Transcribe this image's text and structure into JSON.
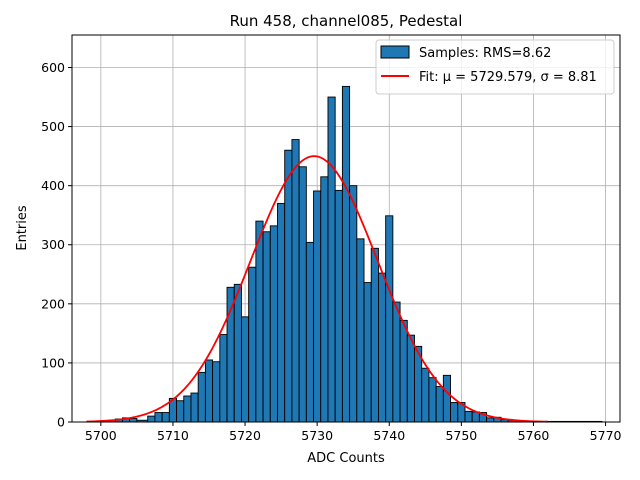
{
  "chart_data": {
    "type": "bar",
    "subtype": "histogram",
    "title": "Run 458, channel085, Pedestal",
    "xlabel": "ADC Counts",
    "ylabel": "Entries",
    "xlim": [
      5696,
      5772
    ],
    "ylim": [
      0,
      655
    ],
    "xticks": [
      5700,
      5710,
      5720,
      5730,
      5740,
      5750,
      5760,
      5770
    ],
    "yticks": [
      0,
      100,
      200,
      300,
      400,
      500,
      600
    ],
    "grid": true,
    "legend_position": "top-right",
    "bar_color": "#1f77b4",
    "fit_color": "#ff0000",
    "series": [
      {
        "name": "Samples: RMS=8.62",
        "bins": [
          [
            5700.0,
            5701.0,
            2
          ],
          [
            5701.0,
            5702.0,
            3
          ],
          [
            5702.0,
            5703.0,
            5
          ],
          [
            5703.0,
            5704.0,
            7
          ],
          [
            5704.0,
            5705.0,
            6
          ],
          [
            5705.0,
            5706.5,
            3
          ],
          [
            5706.5,
            5707.5,
            10
          ],
          [
            5707.5,
            5708.5,
            16
          ],
          [
            5708.5,
            5709.5,
            16
          ],
          [
            5709.5,
            5710.5,
            40
          ],
          [
            5710.5,
            5711.5,
            36
          ],
          [
            5711.5,
            5712.5,
            44
          ],
          [
            5712.5,
            5713.5,
            49
          ],
          [
            5713.5,
            5714.5,
            84
          ],
          [
            5714.5,
            5715.5,
            105
          ],
          [
            5715.5,
            5716.5,
            102
          ],
          [
            5716.5,
            5717.5,
            148
          ],
          [
            5717.5,
            5718.5,
            228
          ],
          [
            5718.5,
            5719.5,
            233
          ],
          [
            5719.5,
            5720.5,
            178
          ],
          [
            5720.5,
            5721.5,
            262
          ],
          [
            5721.5,
            5722.5,
            340
          ],
          [
            5722.5,
            5723.5,
            322
          ],
          [
            5723.5,
            5724.5,
            332
          ],
          [
            5724.5,
            5725.5,
            370
          ],
          [
            5725.5,
            5726.5,
            460
          ],
          [
            5726.5,
            5727.5,
            478
          ],
          [
            5727.5,
            5728.5,
            432
          ],
          [
            5728.5,
            5729.5,
            304
          ],
          [
            5729.5,
            5730.5,
            391
          ],
          [
            5730.5,
            5731.5,
            415
          ],
          [
            5731.5,
            5732.5,
            550
          ],
          [
            5732.5,
            5733.5,
            392
          ],
          [
            5733.5,
            5734.5,
            568
          ],
          [
            5734.5,
            5735.5,
            400
          ],
          [
            5735.5,
            5736.5,
            310
          ],
          [
            5736.5,
            5737.5,
            236
          ],
          [
            5737.5,
            5738.5,
            294
          ],
          [
            5738.5,
            5739.5,
            252
          ],
          [
            5739.5,
            5740.5,
            349
          ],
          [
            5740.5,
            5741.5,
            203
          ],
          [
            5741.5,
            5742.5,
            172
          ],
          [
            5742.5,
            5743.5,
            147
          ],
          [
            5743.5,
            5744.5,
            128
          ],
          [
            5744.5,
            5745.5,
            91
          ],
          [
            5745.5,
            5746.5,
            75
          ],
          [
            5746.5,
            5747.5,
            60
          ],
          [
            5747.5,
            5748.5,
            79
          ],
          [
            5748.5,
            5749.5,
            33
          ],
          [
            5749.5,
            5750.5,
            33
          ],
          [
            5750.5,
            5751.5,
            18
          ],
          [
            5751.5,
            5752.5,
            17
          ],
          [
            5752.5,
            5753.5,
            16
          ],
          [
            5753.5,
            5754.5,
            7
          ],
          [
            5754.5,
            5755.5,
            8
          ],
          [
            5755.5,
            5756.5,
            4
          ],
          [
            5756.5,
            5757.5,
            3
          ],
          [
            5757.5,
            5758.5,
            2
          ],
          [
            5758.5,
            5759.5,
            1
          ],
          [
            5759.5,
            5760.5,
            1
          ],
          [
            5760.5,
            5761.5,
            1
          ],
          [
            5761.5,
            5762.5,
            1
          ],
          [
            5762.5,
            5763.5,
            1
          ],
          [
            5763.5,
            5764.5,
            1
          ],
          [
            5764.5,
            5765.5,
            1
          ],
          [
            5765.5,
            5766.5,
            1
          ],
          [
            5766.5,
            5767.5,
            1
          ],
          [
            5767.5,
            5768.5,
            1
          ],
          [
            5768.5,
            5769.5,
            1
          ]
        ]
      },
      {
        "name": "Fit: μ = 5729.579, σ = 8.81",
        "type": "line",
        "function": "gaussian",
        "mu": 5729.579,
        "sigma": 8.81,
        "amplitude": 450,
        "x_range": [
          5698,
          5762
        ]
      }
    ]
  }
}
